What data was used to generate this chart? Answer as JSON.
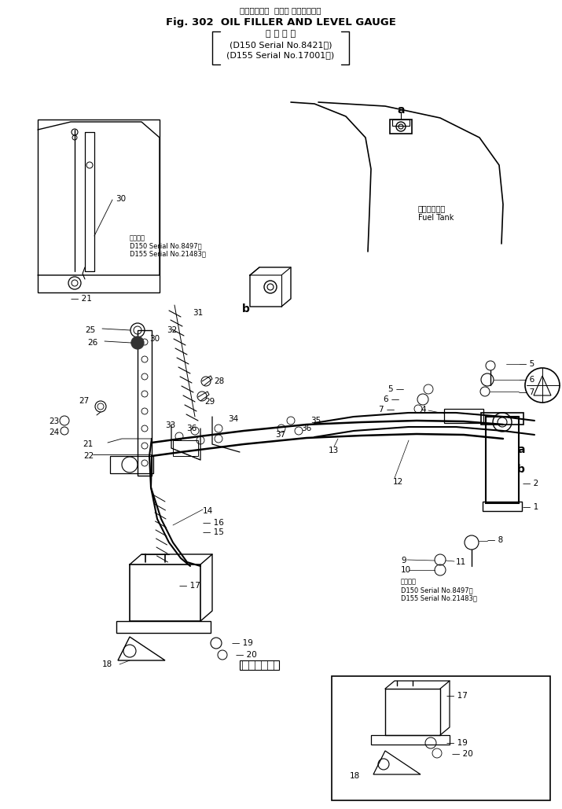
{
  "title_jp": "オイルフィラ  および レベルゲージ",
  "title_en": "Fig. 302  OIL FILLER AND LEVEL GAUGE",
  "title_applicability": "適 用 号 機",
  "title_d150": "D150 Serial No.8421～",
  "title_d155": "(D155 Serial No.17001～)",
  "fuel_tank_jp": "フェルタンク",
  "fuel_tank_en": "Fuel Tank",
  "app_jp": "適用号機",
  "app1a": "D150 Serial No.8497－",
  "app1b": "D155 Serial No.21483～",
  "app2a": "D150 Serial No.8497－",
  "app2b": "D155 Serial No.21483～",
  "bg_color": "#ffffff"
}
